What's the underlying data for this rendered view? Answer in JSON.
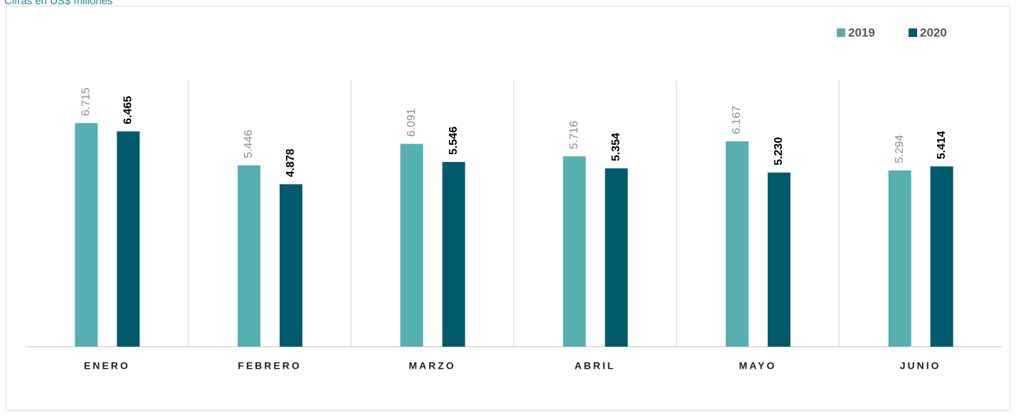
{
  "chart_data": {
    "type": "bar",
    "subtitle": "Cifras en US$ millones",
    "categories": [
      "ENERO",
      "FEBRERO",
      "MARZO",
      "ABRIL",
      "MAYO",
      "JUNIO"
    ],
    "series": [
      {
        "name": "2019",
        "color": "#56b0b0",
        "values": [
          6.715,
          5.446,
          6.091,
          5.716,
          6.167,
          5.294
        ],
        "value_labels": [
          "6.715",
          "5.446",
          "6.091",
          "5.716",
          "6.167",
          "5.294"
        ]
      },
      {
        "name": "2020",
        "color": "#005a6e",
        "values": [
          6.465,
          4.878,
          5.546,
          5.354,
          5.23,
          5.414
        ],
        "value_labels": [
          "6.465",
          "4.878",
          "5.546",
          "5.354",
          "5.230",
          "5.414"
        ]
      }
    ],
    "ylim": [
      0,
      8
    ],
    "legend": "top-right"
  }
}
